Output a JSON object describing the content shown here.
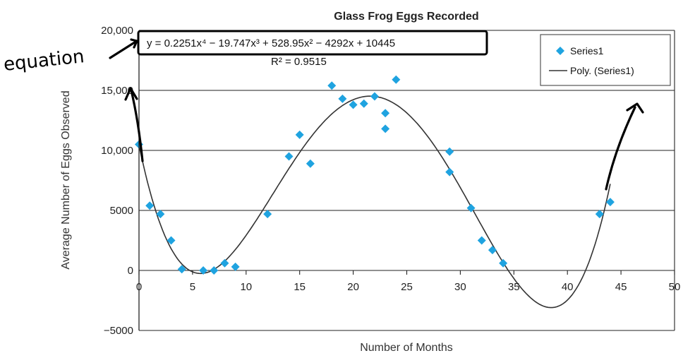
{
  "chart_data": {
    "type": "scatter",
    "title": "Glass Frog Eggs Recorded",
    "xlabel": "Number of Months",
    "ylabel": "Average Number of Eggs Observed",
    "xlim": [
      0,
      50
    ],
    "ylim": [
      -5000,
      20000
    ],
    "x_ticks": [
      0,
      5,
      10,
      15,
      20,
      25,
      30,
      35,
      40,
      45,
      50
    ],
    "y_ticks": [
      -5000,
      0,
      5000,
      10000,
      15000,
      20000
    ],
    "y_tick_labels": [
      "−5000",
      "0",
      "5000",
      "10,000",
      "15,000",
      "20,000"
    ],
    "grid": "horizontal",
    "legend_position": "top-right",
    "series": [
      {
        "name": "Series1",
        "marker": "diamond",
        "color": "#1fa3e0",
        "points": [
          [
            0,
            10500
          ],
          [
            1,
            5400
          ],
          [
            2,
            4700
          ],
          [
            3,
            2500
          ],
          [
            4,
            100
          ],
          [
            6,
            0
          ],
          [
            7,
            0
          ],
          [
            8,
            600
          ],
          [
            9,
            300
          ],
          [
            12,
            4700
          ],
          [
            14,
            9500
          ],
          [
            15,
            11300
          ],
          [
            16,
            8900
          ],
          [
            18,
            15400
          ],
          [
            19,
            14300
          ],
          [
            20,
            13800
          ],
          [
            21,
            13900
          ],
          [
            22,
            14500
          ],
          [
            23,
            13100
          ],
          [
            23,
            11800
          ],
          [
            24,
            15900
          ],
          [
            29,
            9900
          ],
          [
            29,
            8200
          ],
          [
            31,
            5200
          ],
          [
            32,
            2500
          ],
          [
            33,
            1700
          ],
          [
            34,
            600
          ],
          [
            43,
            4700
          ],
          [
            44,
            5700
          ]
        ]
      },
      {
        "name": "Poly. (Series1)",
        "type": "trendline",
        "color": "#333333",
        "coefficients": [
          0.2251,
          -19.747,
          528.95,
          -4292,
          10445
        ]
      }
    ],
    "equation": {
      "line1": "y = 0.2251x⁴ − 19.747x³ + 528.95x² − 4292x + 10445",
      "line2": "R² = 0.9515"
    },
    "annotations": [
      {
        "text": "equation",
        "style": "handwritten"
      }
    ]
  }
}
